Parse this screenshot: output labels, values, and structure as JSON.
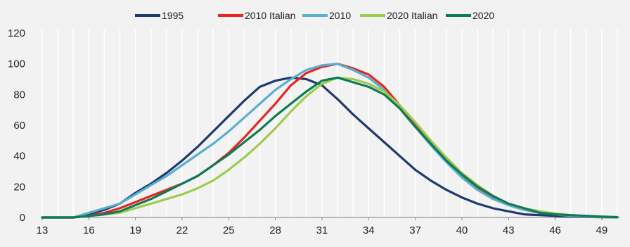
{
  "chart_data": {
    "type": "line",
    "title": "",
    "xlabel": "",
    "ylabel": "",
    "x": [
      13,
      14,
      15,
      16,
      17,
      18,
      19,
      20,
      21,
      22,
      23,
      24,
      25,
      26,
      27,
      28,
      29,
      30,
      31,
      32,
      33,
      34,
      35,
      36,
      37,
      38,
      39,
      40,
      41,
      42,
      43,
      44,
      45,
      46,
      47,
      48,
      49,
      50
    ],
    "x_ticks": [
      13,
      16,
      19,
      22,
      25,
      28,
      31,
      34,
      37,
      40,
      43,
      46,
      49
    ],
    "xlim": [
      13,
      50
    ],
    "ylim": [
      0,
      120
    ],
    "y_ticks": [
      0,
      20,
      40,
      60,
      80,
      100,
      120
    ],
    "grid": "vertical",
    "legend_position": "top",
    "series": [
      {
        "name": "1995",
        "color": "#1f3a6e",
        "values": [
          0,
          0,
          0,
          2,
          5,
          9,
          16,
          22,
          29,
          37,
          46,
          56,
          66,
          76,
          85,
          89,
          91,
          90,
          86,
          77,
          67,
          58,
          49,
          40,
          31,
          24,
          18,
          13,
          9,
          6,
          4,
          2,
          1.5,
          1,
          0.5,
          0.3,
          0.2,
          0.1
        ]
      },
      {
        "name": "2010 Italian",
        "color": "#e8251f",
        "values": [
          0,
          0,
          0,
          1,
          3,
          6,
          10,
          14,
          18,
          22,
          27,
          34,
          42,
          52,
          63,
          74,
          86,
          94,
          98,
          100,
          97,
          93,
          85,
          73,
          60,
          48,
          37,
          27,
          19,
          13,
          8,
          5,
          3,
          2,
          1,
          0.5,
          0.3,
          0.2
        ]
      },
      {
        "name": "2010",
        "color": "#5aaed0",
        "values": [
          0,
          0,
          0,
          3,
          6,
          9,
          15,
          21,
          27,
          34,
          41,
          48,
          56,
          65,
          74,
          83,
          90,
          96,
          99,
          100,
          96,
          91,
          83,
          71,
          59,
          47,
          36,
          26,
          18,
          12,
          8,
          5,
          3,
          2,
          1,
          0.5,
          0.3,
          0.2
        ]
      },
      {
        "name": "2020 Italian",
        "color": "#9ccc4e",
        "values": [
          0,
          0,
          0,
          1,
          2,
          3,
          6,
          9,
          12,
          15,
          19,
          24,
          31,
          39,
          48,
          58,
          69,
          79,
          87,
          91,
          90,
          87,
          82,
          73,
          62,
          50,
          39,
          29,
          21,
          14,
          9,
          6,
          4,
          2.5,
          1.5,
          1,
          0.5,
          0.3
        ]
      },
      {
        "name": "2020",
        "color": "#0e7a56",
        "values": [
          0,
          0,
          0,
          1,
          2,
          4,
          8,
          12,
          17,
          22,
          27,
          34,
          41,
          49,
          57,
          66,
          74,
          82,
          89,
          91,
          88,
          85,
          80,
          71,
          59,
          48,
          37,
          28,
          20,
          14,
          9,
          6,
          3,
          2,
          1.5,
          1,
          0.5,
          0.2
        ]
      }
    ]
  }
}
